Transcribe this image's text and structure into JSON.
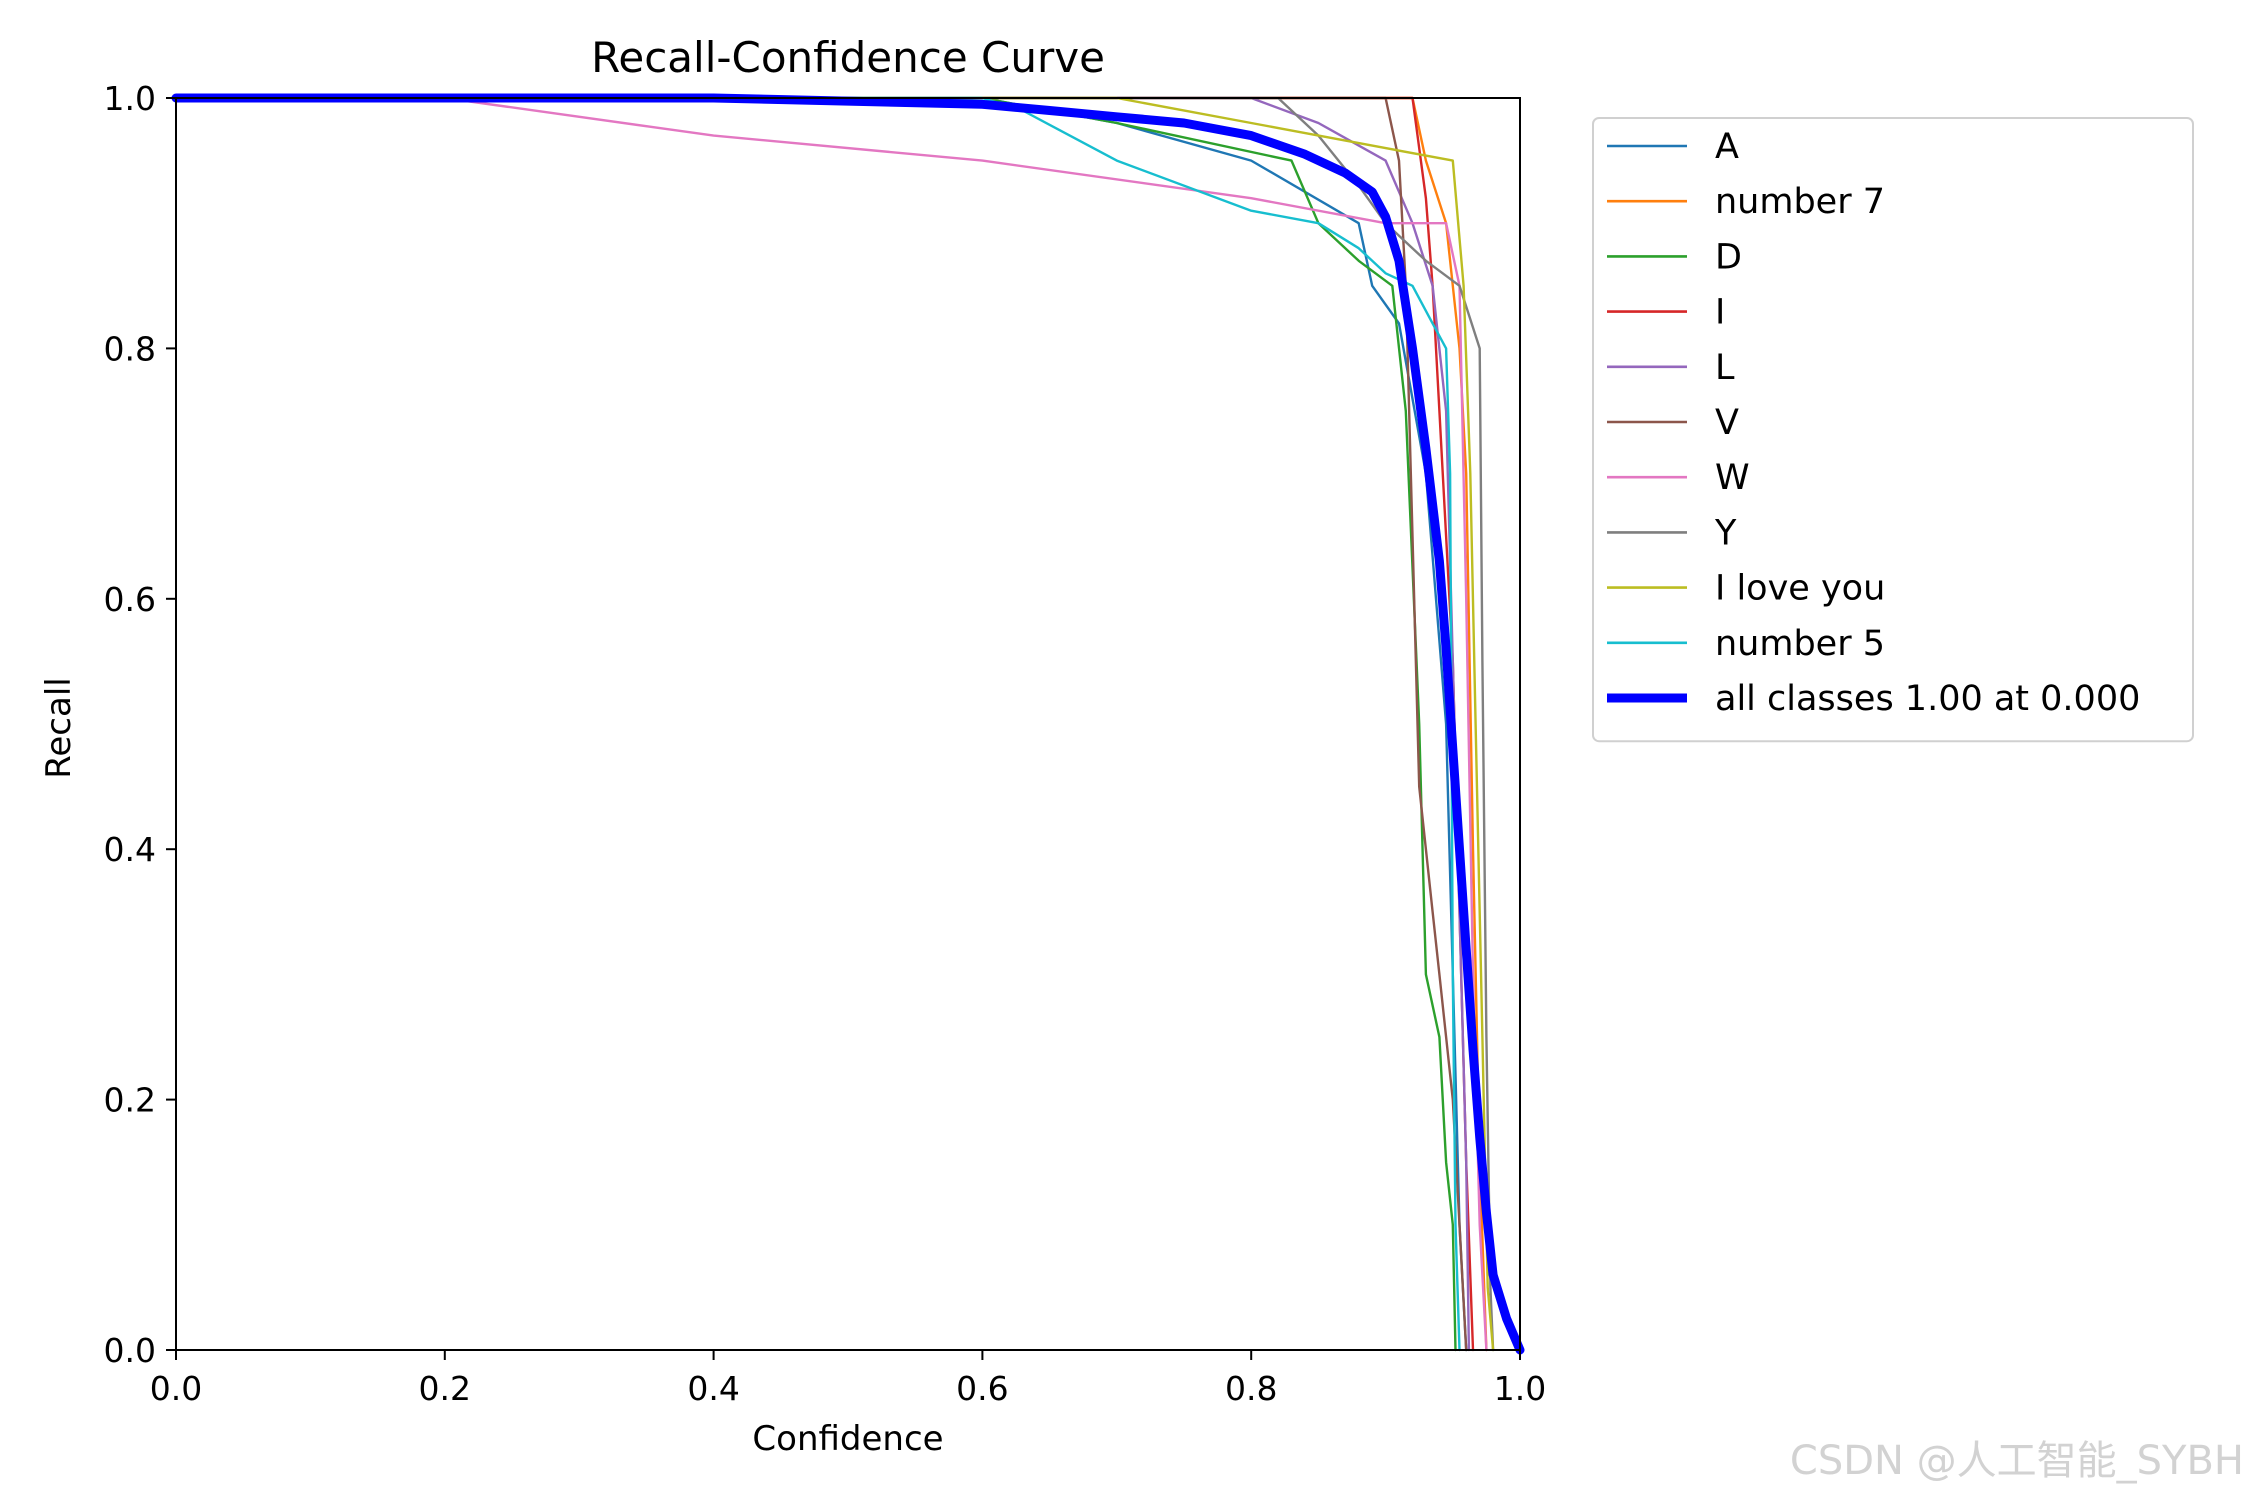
{
  "chart_data": {
    "type": "line",
    "title": "Recall-Confidence Curve",
    "xlabel": "Confidence",
    "ylabel": "Recall",
    "xlim": [
      0,
      1
    ],
    "ylim": [
      0,
      1
    ],
    "xticks": [
      "0.0",
      "0.2",
      "0.4",
      "0.6",
      "0.8",
      "1.0"
    ],
    "yticks": [
      "0.0",
      "0.2",
      "0.4",
      "0.6",
      "0.8",
      "1.0"
    ],
    "grid": false,
    "legend_position": "outside-right",
    "series": [
      {
        "name": "A",
        "color": "#1f77b4",
        "points": [
          [
            0,
            1
          ],
          [
            0.6,
            1
          ],
          [
            0.7,
            0.98
          ],
          [
            0.8,
            0.95
          ],
          [
            0.88,
            0.9
          ],
          [
            0.89,
            0.85
          ],
          [
            0.91,
            0.82
          ],
          [
            0.93,
            0.7
          ],
          [
            0.945,
            0.5
          ],
          [
            0.95,
            0.3
          ],
          [
            0.955,
            0.1
          ],
          [
            0.96,
            0
          ]
        ]
      },
      {
        "name": "number 7",
        "color": "#ff7f0e",
        "points": [
          [
            0,
            1
          ],
          [
            0.92,
            1
          ],
          [
            0.93,
            0.95
          ],
          [
            0.945,
            0.9
          ],
          [
            0.955,
            0.8
          ],
          [
            0.96,
            0.7
          ],
          [
            0.965,
            0.4
          ],
          [
            0.97,
            0.15
          ],
          [
            0.975,
            0
          ]
        ]
      },
      {
        "name": "D",
        "color": "#2ca02c",
        "points": [
          [
            0,
            1
          ],
          [
            0.6,
            1
          ],
          [
            0.7,
            0.98
          ],
          [
            0.83,
            0.95
          ],
          [
            0.85,
            0.9
          ],
          [
            0.88,
            0.87
          ],
          [
            0.905,
            0.85
          ],
          [
            0.915,
            0.75
          ],
          [
            0.925,
            0.5
          ],
          [
            0.93,
            0.3
          ],
          [
            0.94,
            0.25
          ],
          [
            0.945,
            0.15
          ],
          [
            0.95,
            0.1
          ],
          [
            0.952,
            0
          ]
        ]
      },
      {
        "name": "I",
        "color": "#d62728",
        "points": [
          [
            0,
            1
          ],
          [
            0.92,
            1
          ],
          [
            0.93,
            0.92
          ],
          [
            0.935,
            0.85
          ],
          [
            0.94,
            0.75
          ],
          [
            0.95,
            0.55
          ],
          [
            0.955,
            0.35
          ],
          [
            0.96,
            0.15
          ],
          [
            0.965,
            0
          ]
        ]
      },
      {
        "name": "L",
        "color": "#9467bd",
        "points": [
          [
            0,
            1
          ],
          [
            0.8,
            1
          ],
          [
            0.85,
            0.98
          ],
          [
            0.9,
            0.95
          ],
          [
            0.92,
            0.9
          ],
          [
            0.935,
            0.85
          ],
          [
            0.945,
            0.75
          ],
          [
            0.95,
            0.55
          ],
          [
            0.955,
            0.35
          ],
          [
            0.96,
            0.15
          ],
          [
            0.962,
            0
          ]
        ]
      },
      {
        "name": "V",
        "color": "#8c564b",
        "points": [
          [
            0,
            1
          ],
          [
            0.9,
            1
          ],
          [
            0.91,
            0.95
          ],
          [
            0.915,
            0.85
          ],
          [
            0.92,
            0.65
          ],
          [
            0.925,
            0.45
          ],
          [
            0.935,
            0.35
          ],
          [
            0.94,
            0.3
          ],
          [
            0.95,
            0.2
          ],
          [
            0.955,
            0.1
          ],
          [
            0.96,
            0
          ]
        ]
      },
      {
        "name": "W",
        "color": "#e377c2",
        "points": [
          [
            0,
            1
          ],
          [
            0.2,
            1
          ],
          [
            0.4,
            0.97
          ],
          [
            0.6,
            0.95
          ],
          [
            0.8,
            0.92
          ],
          [
            0.9,
            0.9
          ],
          [
            0.945,
            0.9
          ],
          [
            0.955,
            0.85
          ],
          [
            0.96,
            0.6
          ],
          [
            0.965,
            0.3
          ],
          [
            0.97,
            0.1
          ],
          [
            0.975,
            0
          ]
        ]
      },
      {
        "name": "Y",
        "color": "#7f7f7f",
        "points": [
          [
            0,
            1
          ],
          [
            0.82,
            1
          ],
          [
            0.85,
            0.97
          ],
          [
            0.88,
            0.93
          ],
          [
            0.9,
            0.9
          ],
          [
            0.93,
            0.87
          ],
          [
            0.955,
            0.85
          ],
          [
            0.97,
            0.8
          ],
          [
            0.972,
            0.55
          ],
          [
            0.975,
            0.25
          ],
          [
            0.978,
            0.05
          ],
          [
            0.98,
            0
          ]
        ]
      },
      {
        "name": "I love you",
        "color": "#bcbd22",
        "points": [
          [
            0,
            1
          ],
          [
            0.7,
            1
          ],
          [
            0.8,
            0.98
          ],
          [
            0.9,
            0.96
          ],
          [
            0.95,
            0.95
          ],
          [
            0.958,
            0.85
          ],
          [
            0.963,
            0.7
          ],
          [
            0.967,
            0.5
          ],
          [
            0.972,
            0.25
          ],
          [
            0.976,
            0.05
          ],
          [
            0.98,
            0
          ]
        ]
      },
      {
        "name": "number 5",
        "color": "#17becf",
        "points": [
          [
            0,
            1
          ],
          [
            0.6,
            1
          ],
          [
            0.63,
            0.99
          ],
          [
            0.7,
            0.95
          ],
          [
            0.8,
            0.91
          ],
          [
            0.85,
            0.9
          ],
          [
            0.88,
            0.88
          ],
          [
            0.9,
            0.86
          ],
          [
            0.92,
            0.85
          ],
          [
            0.935,
            0.82
          ],
          [
            0.945,
            0.8
          ],
          [
            0.948,
            0.7
          ],
          [
            0.95,
            0.3
          ],
          [
            0.952,
            0.1
          ],
          [
            0.955,
            0
          ]
        ]
      },
      {
        "name": "all classes 1.00 at 0.000",
        "color": "#0000ff",
        "width": "thick",
        "points": [
          [
            0,
            1
          ],
          [
            0.4,
            1
          ],
          [
            0.6,
            0.995
          ],
          [
            0.65,
            0.99
          ],
          [
            0.7,
            0.985
          ],
          [
            0.75,
            0.98
          ],
          [
            0.8,
            0.97
          ],
          [
            0.84,
            0.955
          ],
          [
            0.87,
            0.94
          ],
          [
            0.89,
            0.925
          ],
          [
            0.9,
            0.905
          ],
          [
            0.91,
            0.87
          ],
          [
            0.92,
            0.8
          ],
          [
            0.93,
            0.72
          ],
          [
            0.94,
            0.63
          ],
          [
            0.945,
            0.56
          ],
          [
            0.95,
            0.48
          ],
          [
            0.955,
            0.4
          ],
          [
            0.96,
            0.32
          ],
          [
            0.965,
            0.24
          ],
          [
            0.97,
            0.17
          ],
          [
            0.975,
            0.11
          ],
          [
            0.98,
            0.06
          ],
          [
            0.99,
            0.025
          ],
          [
            1.0,
            0
          ]
        ]
      }
    ]
  },
  "watermark": "CSDN @人工智能_SYBH"
}
